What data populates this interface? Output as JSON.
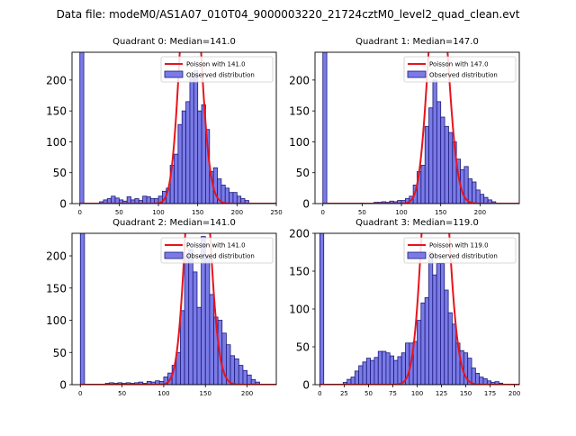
{
  "figure_title": "Data file: modeM0/AS1A07_010T04_9000003220_21724cztM0_level2_quad_clean.evt",
  "colors": {
    "hist_fill": "#7b7be8",
    "hist_edge": "#1a1a7a",
    "poisson": "#e8141c",
    "axis": "#000000"
  },
  "chart_data": [
    {
      "type": "bar",
      "title": "Quadrant 0: Median=141.0",
      "median": 141.0,
      "legend": [
        "Poisson with 141.0",
        "Observed distribution"
      ],
      "legend_loc": "top-right",
      "xlim": [
        -10,
        250
      ],
      "ylim": [
        0,
        245
      ],
      "xticks": [
        0,
        50,
        100,
        150,
        200,
        250
      ],
      "yticks": [
        0,
        50,
        100,
        150,
        200
      ],
      "bin_width": 5,
      "bin_starts": [
        0,
        25,
        30,
        35,
        40,
        45,
        50,
        55,
        60,
        65,
        70,
        75,
        80,
        85,
        90,
        95,
        100,
        105,
        110,
        115,
        120,
        125,
        130,
        135,
        140,
        145,
        150,
        155,
        160,
        165,
        170,
        175,
        180,
        185,
        190,
        195,
        200,
        205,
        210
      ],
      "counts": [
        245,
        3,
        6,
        8,
        12,
        9,
        6,
        4,
        11,
        6,
        8,
        5,
        12,
        11,
        8,
        8,
        12,
        20,
        25,
        62,
        80,
        128,
        150,
        165,
        205,
        215,
        150,
        160,
        120,
        52,
        58,
        40,
        30,
        25,
        18,
        18,
        12,
        8,
        5
      ]
    },
    {
      "type": "bar",
      "title": "Quadrant 1: Median=147.0",
      "median": 147.0,
      "legend": [
        "Poisson with 147.0",
        "Observed distribution"
      ],
      "legend_loc": "top-right",
      "xlim": [
        -10,
        250
      ],
      "ylim": [
        0,
        245
      ],
      "xticks": [
        0,
        50,
        100,
        150,
        200
      ],
      "yticks": [
        0,
        50,
        100,
        150,
        200
      ],
      "bin_width": 5,
      "bin_starts": [
        0,
        65,
        70,
        75,
        80,
        85,
        90,
        95,
        100,
        105,
        110,
        115,
        120,
        125,
        130,
        135,
        140,
        145,
        150,
        155,
        160,
        165,
        170,
        175,
        180,
        185,
        190,
        195,
        200,
        205,
        210,
        215
      ],
      "counts": [
        245,
        2,
        2,
        3,
        2,
        4,
        3,
        5,
        5,
        8,
        12,
        30,
        52,
        62,
        125,
        155,
        200,
        165,
        140,
        125,
        115,
        100,
        72,
        55,
        60,
        40,
        35,
        22,
        15,
        10,
        6,
        3
      ]
    },
    {
      "type": "bar",
      "title": "Quadrant 2: Median=141.0",
      "median": 141.0,
      "legend": [
        "Poisson with 141.0",
        "Observed distribution"
      ],
      "legend_loc": "top-right",
      "xlim": [
        -10,
        235
      ],
      "ylim": [
        0,
        235
      ],
      "xticks": [
        0,
        50,
        100,
        150,
        200
      ],
      "yticks": [
        0,
        50,
        100,
        150,
        200
      ],
      "bin_width": 5,
      "bin_starts": [
        0,
        30,
        35,
        40,
        45,
        50,
        55,
        60,
        65,
        70,
        75,
        80,
        85,
        90,
        95,
        100,
        105,
        110,
        115,
        120,
        125,
        130,
        135,
        140,
        145,
        150,
        155,
        160,
        165,
        170,
        175,
        180,
        185,
        190,
        195,
        200,
        205,
        210
      ],
      "counts": [
        235,
        2,
        3,
        2,
        3,
        2,
        3,
        2,
        3,
        4,
        2,
        5,
        4,
        6,
        5,
        12,
        18,
        30,
        50,
        115,
        200,
        210,
        175,
        120,
        230,
        200,
        140,
        105,
        100,
        80,
        62,
        45,
        40,
        30,
        22,
        15,
        8,
        4
      ]
    },
    {
      "type": "bar",
      "title": "Quadrant 3: Median=119.0",
      "median": 119.0,
      "legend": [
        "Poisson with 119.0",
        "Observed distribution"
      ],
      "legend_loc": "top-right",
      "xlim": [
        -5,
        205
      ],
      "ylim": [
        0,
        200
      ],
      "xticks": [
        0,
        25,
        50,
        75,
        100,
        125,
        150,
        175,
        200
      ],
      "yticks": [
        0,
        50,
        100,
        150,
        200
      ],
      "bin_width": 4,
      "bin_starts": [
        0,
        24,
        28,
        32,
        36,
        40,
        44,
        48,
        52,
        56,
        60,
        64,
        68,
        72,
        76,
        80,
        84,
        88,
        92,
        96,
        100,
        104,
        108,
        112,
        116,
        120,
        124,
        128,
        132,
        136,
        140,
        144,
        148,
        152,
        156,
        160,
        164,
        168,
        172,
        176,
        180,
        184
      ],
      "counts": [
        200,
        3,
        7,
        10,
        18,
        25,
        30,
        35,
        32,
        36,
        44,
        44,
        42,
        38,
        32,
        37,
        42,
        55,
        55,
        57,
        85,
        108,
        115,
        175,
        145,
        160,
        160,
        125,
        95,
        80,
        55,
        45,
        42,
        35,
        22,
        15,
        10,
        8,
        5,
        3,
        4,
        2
      ]
    }
  ]
}
